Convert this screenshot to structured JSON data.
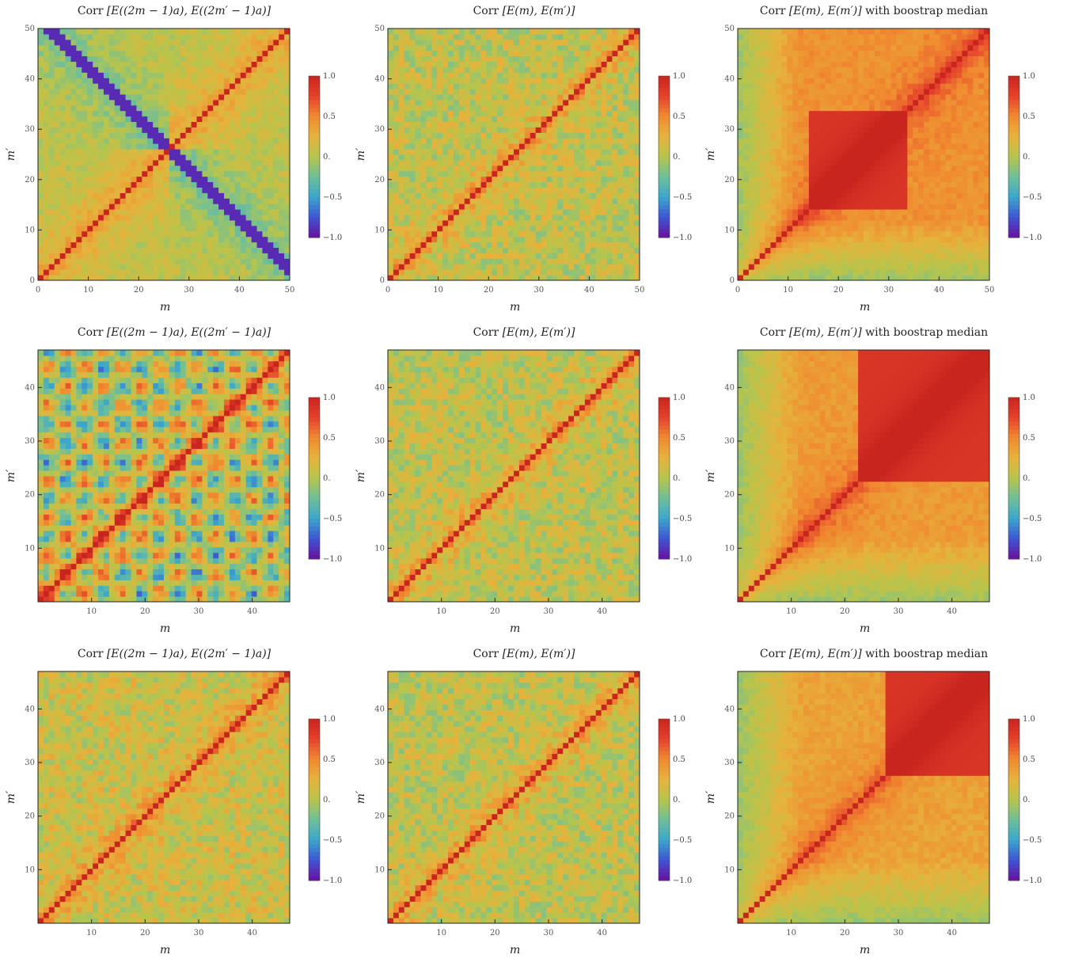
{
  "figure": {
    "colorbar": {
      "ticks": [
        "1.0",
        "0.5",
        "0.",
        "−0.5",
        "−1.0"
      ],
      "colors": [
        "#6a0f9e",
        "#3f55d4",
        "#3ba6cc",
        "#6ebf9a",
        "#b7c54c",
        "#e6b33c",
        "#f08a30",
        "#e5412b",
        "#c9251f"
      ]
    },
    "panels": [
      {
        "title": {
          "lead": "Corr ",
          "expr": "[E((2m − 1)a), E((2m′ − 1)a)]",
          "tail": ""
        },
        "xlabel": "m",
        "ylabel": "m′",
        "ticks": {
          "x": [
            "0",
            "10",
            "20",
            "30",
            "40",
            "50"
          ],
          "y": [
            "0",
            "10",
            "20",
            "30",
            "40",
            "50"
          ]
        }
      },
      {
        "title": {
          "lead": "Corr ",
          "expr": "[E(m), E(m′)]",
          "tail": ""
        },
        "xlabel": "m",
        "ylabel": "m′",
        "ticks": {
          "x": [
            "0",
            "10",
            "20",
            "30",
            "40",
            "50"
          ],
          "y": [
            "0",
            "10",
            "20",
            "30",
            "40",
            "50"
          ]
        }
      },
      {
        "title": {
          "lead": "Corr ",
          "expr": "[E(m), E(m′)]",
          "tail": " with boostrap median"
        },
        "xlabel": "m",
        "ylabel": "m′",
        "ticks": {
          "x": [
            "0",
            "10",
            "20",
            "30",
            "40",
            "50"
          ],
          "y": [
            "0",
            "10",
            "20",
            "30",
            "40",
            "50"
          ]
        }
      },
      {
        "title": {
          "lead": "Corr ",
          "expr": "[E((2m − 1)a), E((2m′ − 1)a)]",
          "tail": ""
        },
        "xlabel": "m",
        "ylabel": "m′",
        "ticks": {
          "x": [
            "10",
            "20",
            "30",
            "40"
          ],
          "y": [
            "10",
            "20",
            "30",
            "40"
          ]
        }
      },
      {
        "title": {
          "lead": "Corr ",
          "expr": "[E(m), E(m′)]",
          "tail": ""
        },
        "xlabel": "m",
        "ylabel": "m′",
        "ticks": {
          "x": [
            "10",
            "20",
            "30",
            "40"
          ],
          "y": [
            "10",
            "20",
            "30",
            "40"
          ]
        }
      },
      {
        "title": {
          "lead": "Corr ",
          "expr": "[E(m), E(m′)]",
          "tail": " with boostrap median"
        },
        "xlabel": "m",
        "ylabel": "m′",
        "ticks": {
          "x": [
            "10",
            "20",
            "30",
            "40"
          ],
          "y": [
            "10",
            "20",
            "30",
            "40"
          ]
        }
      },
      {
        "title": {
          "lead": "Corr ",
          "expr": "[E((2m − 1)a), E((2m′ − 1)a)]",
          "tail": ""
        },
        "xlabel": "m",
        "ylabel": "m′",
        "ticks": {
          "x": [
            "10",
            "20",
            "30",
            "40"
          ],
          "y": [
            "10",
            "20",
            "30",
            "40"
          ]
        }
      },
      {
        "title": {
          "lead": "Corr ",
          "expr": "[E(m), E(m′)]",
          "tail": ""
        },
        "xlabel": "m",
        "ylabel": "m′",
        "ticks": {
          "x": [
            "10",
            "20",
            "30",
            "40"
          ],
          "y": [
            "10",
            "20",
            "30",
            "40"
          ]
        }
      },
      {
        "title": {
          "lead": "Corr ",
          "expr": "[E(m), E(m′)]",
          "tail": " with boostrap median"
        },
        "xlabel": "m",
        "ylabel": "m′",
        "ticks": {
          "x": [
            "10",
            "20",
            "30",
            "40"
          ],
          "y": [
            "10",
            "20",
            "30",
            "40"
          ]
        }
      }
    ]
  },
  "chart_data": [
    {
      "type": "heatmap",
      "title": "Corr [E((2m − 1)a), E((2m′ − 1)a)]",
      "xlabel": "m",
      "ylabel": "m′",
      "xlim": [
        0,
        50
      ],
      "ylim": [
        0,
        50
      ],
      "zlim": [
        -1,
        1
      ],
      "pattern": "anti-diagonal",
      "center": 26,
      "diagonal": 1.0,
      "antidiagonal": -0.9,
      "background": 0.05
    },
    {
      "type": "heatmap",
      "title": "Corr [E(m), E(m′)]",
      "xlabel": "m",
      "ylabel": "m′",
      "xlim": [
        0,
        50
      ],
      "ylim": [
        0,
        50
      ],
      "zlim": [
        -1,
        1
      ],
      "pattern": "diagonal-noise",
      "diagonal": 1.0,
      "background": 0.05
    },
    {
      "type": "heatmap",
      "title": "Corr [E(m), E(m′)] with boostrap median",
      "xlabel": "m",
      "ylabel": "m′",
      "xlim": [
        0,
        50
      ],
      "ylim": [
        0,
        50
      ],
      "zlim": [
        -1,
        1
      ],
      "pattern": "block",
      "block": [
        14,
        34
      ],
      "diagonal": 1.0,
      "background": 0.55
    },
    {
      "type": "heatmap",
      "title": "Corr [E((2m − 1)a), E((2m′ − 1)a)]",
      "xlabel": "m",
      "ylabel": "m′",
      "xlim": [
        0,
        47
      ],
      "ylim": [
        0,
        47
      ],
      "zlim": [
        -1,
        1
      ],
      "pattern": "checker",
      "diagonal": 1.0,
      "background": 0.0
    },
    {
      "type": "heatmap",
      "title": "Corr [E(m), E(m′)]",
      "xlabel": "m",
      "ylabel": "m′",
      "xlim": [
        0,
        47
      ],
      "ylim": [
        0,
        47
      ],
      "zlim": [
        -1,
        1
      ],
      "pattern": "diagonal-noise",
      "diagonal": 1.0,
      "background": 0.05
    },
    {
      "type": "heatmap",
      "title": "Corr [E(m), E(m′)] with boostrap median",
      "xlabel": "m",
      "ylabel": "m′",
      "xlim": [
        0,
        47
      ],
      "ylim": [
        0,
        47
      ],
      "zlim": [
        -1,
        1
      ],
      "pattern": "block",
      "block": [
        22,
        47
      ],
      "diagonal": 1.0,
      "background": 0.5
    },
    {
      "type": "heatmap",
      "title": "Corr [E((2m − 1)a), E((2m′ − 1)a)]",
      "xlabel": "m",
      "ylabel": "m′",
      "xlim": [
        0,
        47
      ],
      "ylim": [
        0,
        47
      ],
      "zlim": [
        -1,
        1
      ],
      "pattern": "diagonal-noise",
      "diagonal": 1.0,
      "background": 0.1
    },
    {
      "type": "heatmap",
      "title": "Corr [E(m), E(m′)]",
      "xlabel": "m",
      "ylabel": "m′",
      "xlim": [
        0,
        47
      ],
      "ylim": [
        0,
        47
      ],
      "zlim": [
        -1,
        1
      ],
      "pattern": "diagonal-noise",
      "diagonal": 1.0,
      "background": 0.05
    },
    {
      "type": "heatmap",
      "title": "Corr [E(m), E(m′)] with boostrap median",
      "xlabel": "m",
      "ylabel": "m′",
      "xlim": [
        0,
        47
      ],
      "ylim": [
        0,
        47
      ],
      "zlim": [
        -1,
        1
      ],
      "pattern": "block",
      "block": [
        28,
        47
      ],
      "diagonal": 1.0,
      "background": 0.45
    }
  ]
}
